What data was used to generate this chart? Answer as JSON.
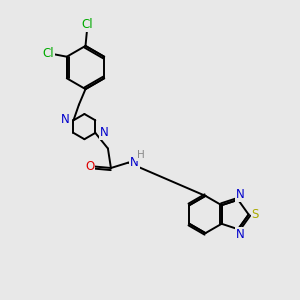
{
  "bg_color": "#e8e8e8",
  "atom_colors": {
    "C": "#000000",
    "N": "#0000cc",
    "O": "#dd0000",
    "S": "#aaaa00",
    "Cl": "#00aa00",
    "H": "#888888"
  },
  "bond_lw": 1.4,
  "font_size": 8.5,
  "fig_size": [
    3.0,
    3.0
  ],
  "dpi": 100
}
